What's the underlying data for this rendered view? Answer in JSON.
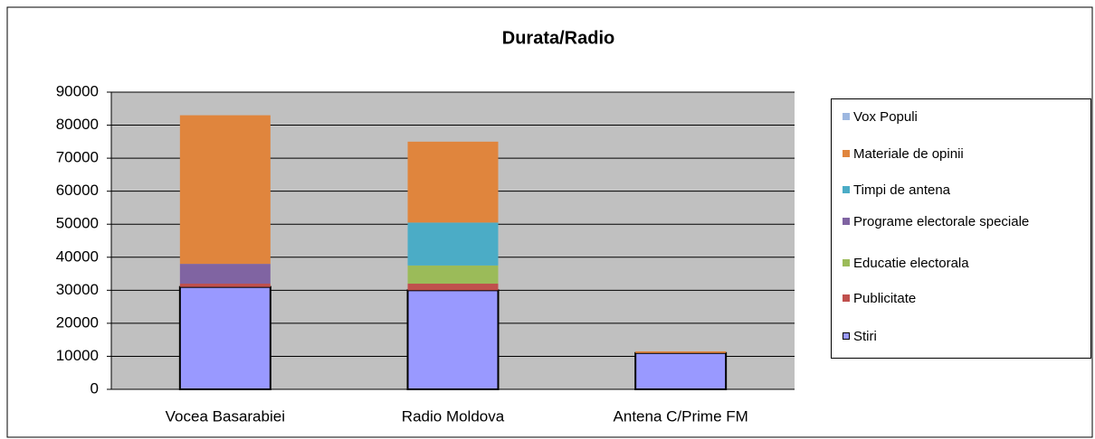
{
  "chart_data": {
    "type": "stacked_bar",
    "title": "Durata/Radio",
    "categories": [
      "Vocea Basarabiei",
      "Radio Moldova",
      "Antena C/Prime FM"
    ],
    "series": [
      {
        "name": "Stiri",
        "color": "#9999ff",
        "values": [
          31000,
          30000,
          11000
        ]
      },
      {
        "name": "Publicitate",
        "color": "#c0504d",
        "values": [
          1000,
          2000,
          0
        ]
      },
      {
        "name": "Educatie electorala",
        "color": "#9bbb59",
        "values": [
          0,
          5500,
          0
        ]
      },
      {
        "name": "Programe electorale speciale",
        "color": "#8064a2",
        "values": [
          6000,
          0,
          0
        ]
      },
      {
        "name": "Timpi de antena",
        "color": "#4bacc6",
        "values": [
          0,
          13000,
          0
        ]
      },
      {
        "name": "Materiale de opinii",
        "color": "#e0853d",
        "values": [
          45000,
          24500,
          500
        ]
      },
      {
        "name": "Vox Populi",
        "color": "#9db7e0",
        "values": [
          0,
          0,
          0
        ]
      }
    ],
    "ylim": [
      0,
      90000
    ],
    "yticks": [
      0,
      10000,
      20000,
      30000,
      40000,
      50000,
      60000,
      70000,
      80000,
      90000
    ],
    "grid": true,
    "legend": "right"
  }
}
